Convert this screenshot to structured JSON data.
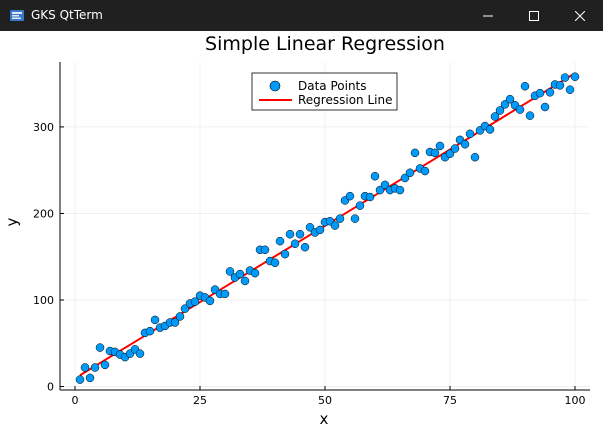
{
  "window": {
    "title": "GKS QtTerm",
    "icon": "gks-app-icon",
    "controls": [
      "minimize-icon",
      "maximize-icon",
      "close-icon"
    ]
  },
  "colors": {
    "titlebar": "#202020",
    "points": "#009AFA",
    "line": "#FF0000",
    "grid": "#EDEDED"
  },
  "chart_data": {
    "type": "scatter",
    "title": "Simple Linear Regression",
    "xlabel": "x",
    "ylabel": "y",
    "xlim": [
      -3,
      103
    ],
    "ylim": [
      -4,
      375
    ],
    "xticks": [
      0,
      25,
      50,
      75,
      100
    ],
    "yticks": [
      0,
      100,
      200,
      300
    ],
    "grid": true,
    "legend_position": "top-center",
    "legend": [
      "Data Points",
      "Regression Line"
    ],
    "series": [
      {
        "name": "Data Points",
        "kind": "scatter",
        "x": [
          1,
          2,
          3,
          4,
          5,
          6,
          7,
          8,
          9,
          10,
          11,
          12,
          13,
          14,
          15,
          16,
          17,
          18,
          19,
          20,
          21,
          22,
          23,
          24,
          25,
          26,
          27,
          28,
          29,
          30,
          31,
          32,
          33,
          34,
          35,
          36,
          37,
          38,
          39,
          40,
          41,
          42,
          43,
          44,
          45,
          46,
          47,
          48,
          49,
          50,
          51,
          52,
          53,
          54,
          55,
          56,
          57,
          58,
          59,
          60,
          61,
          62,
          63,
          64,
          65,
          66,
          67,
          68,
          69,
          70,
          71,
          72,
          73,
          74,
          75,
          76,
          77,
          78,
          79,
          80,
          81,
          82,
          83,
          84,
          85,
          86,
          87,
          88,
          89,
          90,
          91,
          92,
          93,
          94,
          95,
          96,
          97,
          98,
          99,
          100
        ],
        "y": [
          8,
          22,
          10,
          22,
          45,
          25,
          41,
          40,
          37,
          34,
          38,
          43,
          38,
          62,
          64,
          77,
          68,
          70,
          74,
          74,
          81,
          90,
          96,
          98,
          105,
          103,
          99,
          112,
          107,
          107,
          133,
          126,
          130,
          122,
          134,
          131,
          158,
          158,
          145,
          143,
          168,
          153,
          176,
          165,
          176,
          161,
          184,
          178,
          181,
          190,
          191,
          186,
          194,
          215,
          220,
          194,
          209,
          220,
          219,
          243,
          227,
          233,
          227,
          229,
          227,
          241,
          247,
          270,
          252,
          249,
          271,
          270,
          278,
          265,
          269,
          275,
          285,
          280,
          292,
          265,
          296,
          301,
          297,
          312,
          319,
          326,
          332,
          325,
          320,
          347,
          313,
          336,
          339,
          323,
          340,
          349,
          348,
          357,
          343,
          358
        ]
      },
      {
        "name": "Regression Line",
        "kind": "line",
        "x": [
          1,
          100
        ],
        "y": [
          13,
          362
        ]
      }
    ]
  }
}
